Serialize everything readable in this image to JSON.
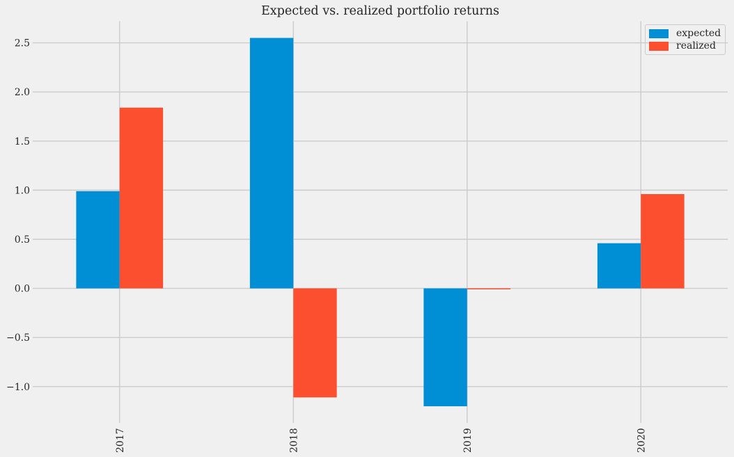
{
  "chart_data": {
    "type": "bar",
    "title": "Expected vs. realized portfolio returns",
    "categories": [
      "2017",
      "2018",
      "2019",
      "2020"
    ],
    "series": [
      {
        "name": "expected",
        "color": "#008fd5",
        "values": [
          0.99,
          2.55,
          -1.2,
          0.46
        ]
      },
      {
        "name": "realized",
        "color": "#fc4f30",
        "values": [
          1.84,
          -1.11,
          -0.01,
          0.96
        ]
      }
    ],
    "xlabel": "",
    "ylabel": "",
    "yticks": [
      -1.0,
      -0.5,
      0.0,
      0.5,
      1.0,
      1.5,
      2.0,
      2.5
    ],
    "ylim": [
      -1.32,
      2.72
    ],
    "grid": true,
    "legend_position": "upper-right",
    "background_color": "#f0f0f0",
    "grid_color": "#cbcbcb",
    "text_color": "#262626"
  }
}
